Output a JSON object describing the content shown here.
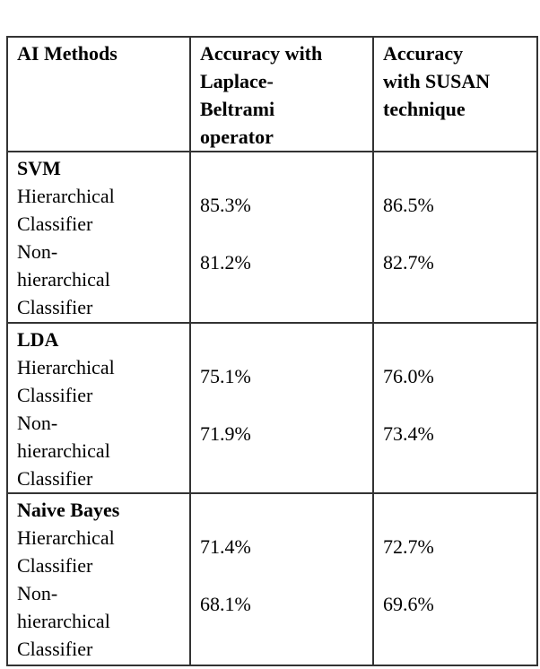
{
  "table": {
    "headers": [
      "AI Methods",
      "Accuracy with Laplace-Beltrami operator",
      "Accuracy with  SUSAN technique"
    ],
    "header_lines": {
      "col1": [
        "AI Methods"
      ],
      "col2": [
        "Accuracy with",
        "Laplace-",
        "Beltrami",
        "operator"
      ],
      "col3": [
        "Accuracy",
        "with  SUSAN",
        "technique"
      ]
    },
    "groups": [
      {
        "method": "SVM",
        "rows": [
          {
            "label": [
              "Hierarchical",
              "Classifier"
            ],
            "laplace": "85.3%",
            "susan": "86.5%"
          },
          {
            "label": [
              "Non-",
              "hierarchical",
              "Classifier"
            ],
            "laplace": "81.2%",
            "susan": "82.7%"
          }
        ]
      },
      {
        "method": "LDA",
        "rows": [
          {
            "label": [
              "Hierarchical",
              "Classifier"
            ],
            "laplace": "75.1%",
            "susan": "76.0%"
          },
          {
            "label": [
              "Non-",
              "hierarchical",
              "Classifier"
            ],
            "laplace": "71.9%",
            "susan": "73.4%"
          }
        ]
      },
      {
        "method": "Naive Bayes",
        "rows": [
          {
            "label": [
              "Hierarchical",
              "Classifier"
            ],
            "laplace": "71.4%",
            "susan": "72.7%"
          },
          {
            "label": [
              "Non-",
              "hierarchical",
              "Classifier"
            ],
            "laplace": "68.1%",
            "susan": "69.6%"
          }
        ]
      }
    ]
  }
}
